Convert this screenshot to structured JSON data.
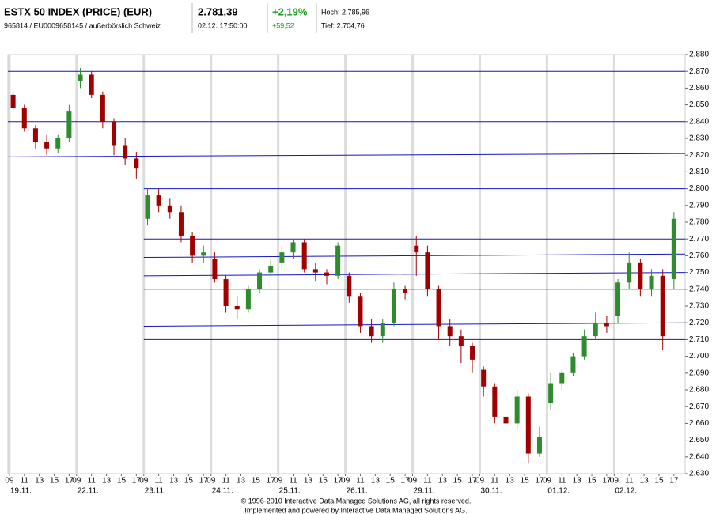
{
  "header": {
    "title": "ESTX 50 INDEX (PRICE) (EUR)",
    "subtitle": "965814 / EU0009658145 / außerbörslich Schweiz",
    "price": "2.781,39",
    "time": "02.12. 17:50:00",
    "change_pct": "+2,19%",
    "change_abs": "+59,52",
    "high": "Hoch: 2.785,96",
    "low": "Tief: 2.704,76"
  },
  "footer": [
    "© 1996-2010 Interactive Data Managed Solutions AG, all rights reserved.",
    "Implemented and powered by Interactive Data Managed Solutions AG."
  ],
  "chart_data": {
    "type": "candlestick",
    "up_color": "#2e8b2e",
    "down_color": "#a00000",
    "line_color": "#1515c0",
    "xlim": [
      -0.2,
      90.5
    ],
    "ylim": [
      2630,
      2880
    ],
    "yticks": [
      {
        "value": 2630,
        "label": "2.630"
      },
      {
        "value": 2640,
        "label": "2.640"
      },
      {
        "value": 2650,
        "label": "2.650"
      },
      {
        "value": 2660,
        "label": "2.660"
      },
      {
        "value": 2670,
        "label": "2.670"
      },
      {
        "value": 2680,
        "label": "2.680"
      },
      {
        "value": 2690,
        "label": "2.690"
      },
      {
        "value": 2700,
        "label": "2.700"
      },
      {
        "value": 2710,
        "label": "2.710"
      },
      {
        "value": 2720,
        "label": "2.720"
      },
      {
        "value": 2730,
        "label": "2.730"
      },
      {
        "value": 2740,
        "label": "2.740"
      },
      {
        "value": 2750,
        "label": "2.750"
      },
      {
        "value": 2760,
        "label": "2.760"
      },
      {
        "value": 2770,
        "label": "2.770"
      },
      {
        "value": 2780,
        "label": "2.780"
      },
      {
        "value": 2790,
        "label": "2.790"
      },
      {
        "value": 2800,
        "label": "2.800"
      },
      {
        "value": 2810,
        "label": "2.810"
      },
      {
        "value": 2820,
        "label": "2.820"
      },
      {
        "value": 2830,
        "label": "2.830"
      },
      {
        "value": 2840,
        "label": "2.840"
      },
      {
        "value": 2850,
        "label": "2.850"
      },
      {
        "value": 2860,
        "label": "2.860"
      },
      {
        "value": 2870,
        "label": "2.870"
      },
      {
        "value": 2880,
        "label": "2.880"
      }
    ],
    "xticks": [
      {
        "value": 0,
        "label": "09"
      },
      {
        "value": 2,
        "label": "11"
      },
      {
        "value": 4,
        "label": "13"
      },
      {
        "value": 6,
        "label": "15"
      },
      {
        "value": 8,
        "label": "17"
      },
      {
        "value": 9,
        "label": "09"
      },
      {
        "value": 11,
        "label": "11"
      },
      {
        "value": 13,
        "label": "13"
      },
      {
        "value": 15,
        "label": "15"
      },
      {
        "value": 17,
        "label": "17"
      },
      {
        "value": 18,
        "label": "09"
      },
      {
        "value": 20,
        "label": "11"
      },
      {
        "value": 22,
        "label": "13"
      },
      {
        "value": 24,
        "label": "15"
      },
      {
        "value": 26,
        "label": "17"
      },
      {
        "value": 27,
        "label": "09"
      },
      {
        "value": 29,
        "label": "11"
      },
      {
        "value": 31,
        "label": "13"
      },
      {
        "value": 33,
        "label": "15"
      },
      {
        "value": 35,
        "label": "17"
      },
      {
        "value": 36,
        "label": "09"
      },
      {
        "value": 38,
        "label": "11"
      },
      {
        "value": 40,
        "label": "13"
      },
      {
        "value": 42,
        "label": "15"
      },
      {
        "value": 44,
        "label": "17"
      },
      {
        "value": 45,
        "label": "09"
      },
      {
        "value": 47,
        "label": "11"
      },
      {
        "value": 49,
        "label": "13"
      },
      {
        "value": 51,
        "label": "15"
      },
      {
        "value": 53,
        "label": "17"
      },
      {
        "value": 54,
        "label": "09"
      },
      {
        "value": 56,
        "label": "11"
      },
      {
        "value": 58,
        "label": "13"
      },
      {
        "value": 60,
        "label": "15"
      },
      {
        "value": 62,
        "label": "17"
      },
      {
        "value": 63,
        "label": "09"
      },
      {
        "value": 65,
        "label": "11"
      },
      {
        "value": 67,
        "label": "13"
      },
      {
        "value": 69,
        "label": "15"
      },
      {
        "value": 71,
        "label": "17"
      },
      {
        "value": 72,
        "label": "09"
      },
      {
        "value": 74,
        "label": "11"
      },
      {
        "value": 76,
        "label": "13"
      },
      {
        "value": 78,
        "label": "15"
      },
      {
        "value": 80,
        "label": "17"
      },
      {
        "value": 81,
        "label": "09"
      },
      {
        "value": 83,
        "label": "11"
      },
      {
        "value": 85,
        "label": "13"
      },
      {
        "value": 87,
        "label": "15"
      },
      {
        "value": 89,
        "label": "17"
      }
    ],
    "days": [
      {
        "value": 0,
        "label": "19.11."
      },
      {
        "value": 9,
        "label": "22.11."
      },
      {
        "value": 18,
        "label": "23.11."
      },
      {
        "value": 27,
        "label": "24.11."
      },
      {
        "value": 36,
        "label": "25.11."
      },
      {
        "value": 45,
        "label": "26.11."
      },
      {
        "value": 54,
        "label": "29.11."
      },
      {
        "value": 63,
        "label": "30.11."
      },
      {
        "value": 72,
        "label": "01.12."
      },
      {
        "value": 81,
        "label": "02.12."
      }
    ],
    "x": [
      0.5,
      2,
      3.5,
      5,
      6.5,
      8,
      9.5,
      11,
      12.5,
      14,
      15.5,
      17,
      18.5,
      20,
      21.5,
      23,
      24.5,
      26,
      27.5,
      29,
      30.5,
      32,
      33.5,
      35,
      36.5,
      38,
      39.5,
      41,
      42.5,
      44,
      45.5,
      47,
      48.5,
      50,
      51.5,
      53,
      54.5,
      56,
      57.5,
      59,
      60.5,
      62,
      63.5,
      65,
      66.5,
      68,
      69.5,
      71,
      72.5,
      74,
      75.5,
      77,
      78.5,
      80,
      81.5,
      83,
      84.5,
      86,
      87.5,
      89
    ],
    "open": [
      2856,
      2848,
      2836,
      2828,
      2824,
      2830,
      2864,
      2868,
      2856,
      2840,
      2826,
      2818,
      2782,
      2796,
      2790,
      2786,
      2772,
      2760,
      2758,
      2746,
      2730,
      2728,
      2740,
      2750,
      2756,
      2762,
      2768,
      2752,
      2750,
      2748,
      2748,
      2736,
      2718,
      2712,
      2720,
      2740,
      2766,
      2762,
      2740,
      2718,
      2712,
      2706,
      2692,
      2682,
      2664,
      2660,
      2676,
      2642,
      2672,
      2684,
      2690,
      2700,
      2712,
      2720,
      2724,
      2744,
      2756,
      2740,
      2748,
      2746
    ],
    "high": [
      2858,
      2850,
      2838,
      2832,
      2832,
      2850,
      2872,
      2870,
      2858,
      2842,
      2830,
      2822,
      2800,
      2800,
      2794,
      2790,
      2774,
      2766,
      2762,
      2748,
      2736,
      2742,
      2752,
      2758,
      2766,
      2770,
      2770,
      2756,
      2752,
      2768,
      2750,
      2738,
      2722,
      2722,
      2744,
      2742,
      2772,
      2766,
      2742,
      2722,
      2716,
      2708,
      2694,
      2684,
      2668,
      2680,
      2678,
      2658,
      2690,
      2692,
      2702,
      2716,
      2726,
      2724,
      2746,
      2762,
      2758,
      2752,
      2752,
      2786
    ],
    "low": [
      2846,
      2834,
      2824,
      2820,
      2821,
      2828,
      2860,
      2854,
      2836,
      2820,
      2814,
      2806,
      2778,
      2786,
      2782,
      2768,
      2756,
      2756,
      2744,
      2726,
      2722,
      2726,
      2738,
      2748,
      2752,
      2758,
      2750,
      2745,
      2743,
      2746,
      2732,
      2714,
      2708,
      2708,
      2718,
      2734,
      2748,
      2736,
      2710,
      2706,
      2696,
      2690,
      2676,
      2660,
      2650,
      2656,
      2636,
      2640,
      2668,
      2680,
      2688,
      2698,
      2710,
      2714,
      2720,
      2740,
      2736,
      2736,
      2704,
      2740
    ],
    "close": [
      2848,
      2836,
      2828,
      2824,
      2830,
      2846,
      2868,
      2856,
      2840,
      2826,
      2818,
      2812,
      2796,
      2790,
      2786,
      2772,
      2760,
      2762,
      2746,
      2730,
      2728,
      2740,
      2750,
      2754,
      2762,
      2768,
      2752,
      2750,
      2748,
      2766,
      2736,
      2718,
      2712,
      2720,
      2740,
      2738,
      2762,
      2740,
      2718,
      2712,
      2706,
      2698,
      2682,
      2664,
      2660,
      2676,
      2642,
      2652,
      2684,
      2690,
      2700,
      2712,
      2720,
      2718,
      2744,
      2756,
      2740,
      2748,
      2712,
      2782
    ],
    "trendlines": [
      {
        "x": [
          -0.2,
          90.5
        ],
        "y": [
          2870,
          2870
        ]
      },
      {
        "x": [
          -0.2,
          90.5
        ],
        "y": [
          2840,
          2840
        ]
      },
      {
        "x": [
          -0.2,
          90.5
        ],
        "y": [
          2819,
          2821
        ]
      },
      {
        "x": [
          18,
          90.5
        ],
        "y": [
          2800,
          2800
        ]
      },
      {
        "x": [
          18,
          90.5
        ],
        "y": [
          2770,
          2770
        ]
      },
      {
        "x": [
          18,
          90.5
        ],
        "y": [
          2759,
          2761
        ]
      },
      {
        "x": [
          18,
          90.5
        ],
        "y": [
          2748,
          2750
        ]
      },
      {
        "x": [
          18,
          90.5
        ],
        "y": [
          2740,
          2740
        ]
      },
      {
        "x": [
          18,
          90.5
        ],
        "y": [
          2718,
          2720
        ]
      },
      {
        "x": [
          18,
          90.5
        ],
        "y": [
          2710,
          2710
        ]
      }
    ]
  }
}
